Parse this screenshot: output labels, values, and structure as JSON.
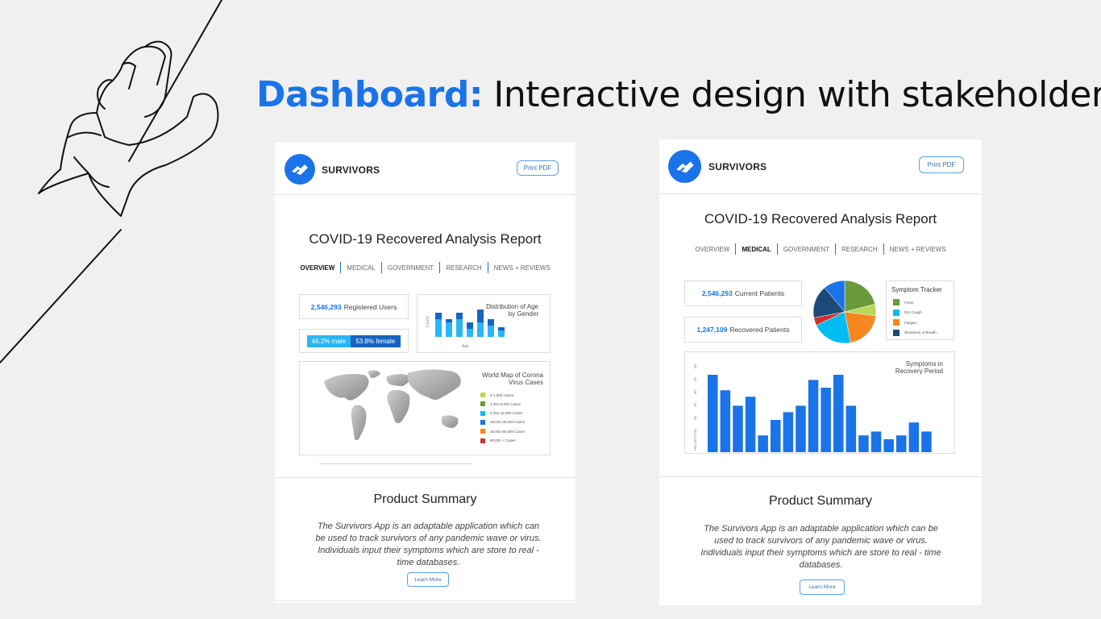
{
  "slide": {
    "title_accent": "Dashboard:",
    "title_rest": " Interactive design with stakeholders"
  },
  "colors": {
    "accent": "#1a73e8",
    "dark_blue": "#1565c0",
    "light_blue": "#29b6f6",
    "cyan": "#00bcf2",
    "green": "#6a9a3a",
    "lime": "#b8d85a",
    "orange": "#f5871f",
    "red": "#d32f2f",
    "navy": "#1e4a78"
  },
  "left": {
    "brand": "SURVIVORS",
    "print_label": "Print PDF",
    "report_title": "COVID-19 Recovered Analysis Report",
    "tabs": [
      {
        "label": "OVERVIEW",
        "active": true
      },
      {
        "label": "MEDICAL",
        "active": false
      },
      {
        "label": "GOVERNMENT",
        "active": false
      },
      {
        "label": "RESEARCH",
        "active": false
      },
      {
        "label": "NEWS + REVIEWS",
        "active": false
      }
    ],
    "registered": {
      "value": "2,546,293",
      "label": "Registered Users"
    },
    "gender": {
      "male": "46.2% male",
      "female": "53.8% female",
      "male_fraction": 0.462
    },
    "age_chart": {
      "title": "Distribution of Age by Gender",
      "xlabel": "Age",
      "ylabel": "Count",
      "groups": [
        {
          "a": 0.55,
          "b": 0.75
        },
        {
          "a": 0.45,
          "b": 0.55
        },
        {
          "a": 0.55,
          "b": 0.75
        },
        {
          "a": 0.25,
          "b": 0.45
        },
        {
          "a": 0.45,
          "b": 0.85
        },
        {
          "a": 0.35,
          "b": 0.55
        },
        {
          "a": 0.2,
          "b": 0.3
        }
      ]
    },
    "map": {
      "title": "World Map of Corona Virus Cases",
      "legend": [
        {
          "label": "0-1,000 Cases",
          "color": "#b8d85a"
        },
        {
          "label": "1,001-5,000 Cases",
          "color": "#6a9a3a"
        },
        {
          "label": "5,001-15,000 Cases",
          "color": "#00bcf2"
        },
        {
          "label": "15,001-30,000 Cases",
          "color": "#1a73e8"
        },
        {
          "label": "30,001-60,000 Cases",
          "color": "#f5871f"
        },
        {
          "label": "60,001 + Cases",
          "color": "#d32f2f"
        }
      ]
    },
    "summary": {
      "title": "Product Summary",
      "text": "The Survivors App is an adaptable application which can be used to track survivors of any pandemic wave or virus. Individuals input their symptoms which are store to real - time databases.",
      "button": "Learn More"
    }
  },
  "right": {
    "brand": "SURVIVORS",
    "print_label": "Print PDF",
    "report_title": "COVID-19 Recovered Analysis Report",
    "tabs": [
      {
        "label": "OVERVIEW",
        "active": false
      },
      {
        "label": "MEDICAL",
        "active": true
      },
      {
        "label": "GOVERNMENT",
        "active": false
      },
      {
        "label": "RESEARCH",
        "active": false
      },
      {
        "label": "NEWS + REVIEWS",
        "active": false
      }
    ],
    "current": {
      "value": "2,546,293",
      "label": "Current Patients"
    },
    "recovered": {
      "value": "1,247,109",
      "label": "Recovered Patients"
    },
    "pie": {
      "slices": [
        {
          "value": 0.21,
          "color": "#6a9a3a"
        },
        {
          "value": 0.06,
          "color": "#b8d85a"
        },
        {
          "value": 0.2,
          "color": "#f5871f"
        },
        {
          "value": 0.21,
          "color": "#00bcf2"
        },
        {
          "value": 0.04,
          "color": "#d32f2f"
        },
        {
          "value": 0.17,
          "color": "#1e4a78"
        },
        {
          "value": 0.11,
          "color": "#1a73e8"
        }
      ]
    },
    "tracker": {
      "title": "Symptom Tracker",
      "items": [
        {
          "label": "Fever",
          "color": "#6a9a3a"
        },
        {
          "label": "Dry Cough",
          "color": "#00bcf2"
        },
        {
          "label": "Fatigue",
          "color": "#f5871f"
        },
        {
          "label": "Shortness of Breath",
          "color": "#1e4a78"
        }
      ]
    },
    "symptoms_chart": {
      "title": "Symptoms in Recovery Period",
      "ylabel": "VELOCITY",
      "yticks": [
        "0",
        "10",
        "20",
        "30",
        "40",
        "50",
        "60"
      ],
      "values": [
        60,
        48,
        36,
        43,
        13,
        25,
        31,
        36,
        56,
        50,
        60,
        36,
        13,
        16,
        10,
        13,
        23,
        16
      ],
      "ymax": 60
    },
    "summary": {
      "title": "Product Summary",
      "text": "The Survivors App is an adaptable application which can be used to track survivors of any pandemic wave or virus. Individuals input their symptoms which are store to real - time databases.",
      "button": "Learn More"
    }
  }
}
